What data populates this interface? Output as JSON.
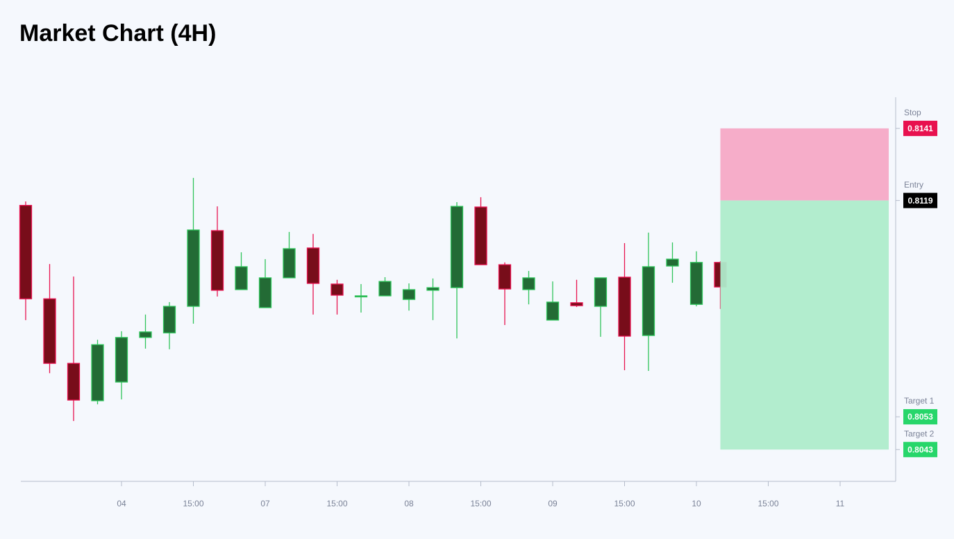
{
  "chart_data": {
    "type": "candlestick",
    "title": "Market Chart (4H)",
    "categories": [
      null,
      null,
      null,
      null,
      "04",
      null,
      null,
      "15:00",
      null,
      null,
      "07",
      null,
      null,
      "15:00",
      null,
      null,
      "08",
      null,
      null,
      "15:00",
      null,
      null,
      "09",
      null,
      null,
      "15:00",
      null,
      null,
      "10",
      null,
      null,
      "15:00",
      null,
      null,
      "11"
    ],
    "open": [
      0.81175,
      0.8089,
      0.80693,
      0.80579,
      0.80636,
      0.80772,
      0.80786,
      0.80867,
      0.81098,
      0.80918,
      0.80863,
      0.80954,
      0.81045,
      0.80935,
      0.80897,
      0.80899,
      0.80888,
      0.80916,
      0.80924,
      0.8117,
      0.80994,
      0.80918,
      0.80825,
      0.80878,
      0.80867,
      0.80956,
      0.80778,
      0.8099,
      0.80873,
      0.81001,
      null,
      null,
      null,
      null,
      null
    ],
    "high": [
      0.81187,
      0.80996,
      0.80958,
      0.80765,
      0.80791,
      0.80842,
      0.8088,
      0.81259,
      0.81172,
      0.81032,
      0.81011,
      0.81094,
      0.81088,
      0.80948,
      0.80935,
      0.80956,
      0.80937,
      0.80952,
      0.81185,
      0.812,
      0.81001,
      0.80975,
      0.80943,
      0.80948,
      0.80954,
      0.8106,
      0.81092,
      0.81062,
      0.81035,
      0.81005,
      null,
      null,
      null,
      null,
      null
    ],
    "low": [
      0.80825,
      0.80663,
      0.80517,
      0.80568,
      0.80583,
      0.80738,
      0.80736,
      0.80814,
      0.80897,
      0.80918,
      0.80863,
      0.80954,
      0.80842,
      0.80842,
      0.80848,
      0.80899,
      0.80854,
      0.80825,
      0.80769,
      0.80994,
      0.8081,
      0.80873,
      0.80825,
      0.80865,
      0.80774,
      0.80672,
      0.8067,
      0.80939,
      0.80867,
      0.80859,
      null,
      null,
      null,
      null,
      null
    ],
    "close": [
      0.8089,
      0.80693,
      0.80581,
      0.8075,
      0.80772,
      0.80789,
      0.80867,
      0.811,
      0.80916,
      0.80988,
      0.80954,
      0.81043,
      0.80937,
      0.80901,
      0.80899,
      0.80943,
      0.80918,
      0.80924,
      0.81172,
      0.80994,
      0.8092,
      0.80954,
      0.8088,
      0.80869,
      0.80954,
      0.80776,
      0.80988,
      0.81011,
      0.81001,
      0.80926,
      null,
      null,
      null,
      null,
      null
    ],
    "up_color": "#2ec45a",
    "down_color": "#e8114f",
    "ylim": [
      0.80333,
      0.81505
    ],
    "levels": [
      {
        "name": "Stop",
        "value": 0.8141,
        "color": "#e8114f"
      },
      {
        "name": "Entry",
        "value": 0.8119,
        "color": "#000000"
      },
      {
        "name": "Target 1",
        "value": 0.8053,
        "color": "#27d66a"
      },
      {
        "name": "Target 2",
        "value": 0.8043,
        "color": "#27d66a"
      }
    ]
  }
}
